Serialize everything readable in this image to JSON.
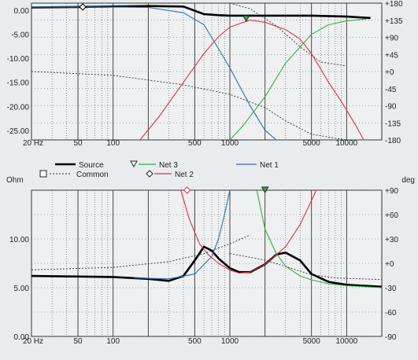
{
  "colors": {
    "background": "#e9ecef",
    "grid": "#444444",
    "source": "#000000",
    "net1": "#2c6fb3",
    "net2": "#e0304a",
    "net3": "#2fae45",
    "common": "#333333"
  },
  "chart_data": [
    {
      "type": "line",
      "x_scale": "log",
      "xlim": [
        20,
        20000
      ],
      "ylim": [
        -27,
        1.5
      ],
      "y2lim": [
        -180,
        180
      ],
      "x_tick_labels": [
        "20 Hz",
        "50",
        "100",
        "500",
        "1000",
        "5000",
        "10000"
      ],
      "y_tick_labels": [
        "0.00",
        "-5.00",
        "-10.00",
        "-15.00",
        "-20.00",
        "-25.00"
      ],
      "y2_tick_labels": [
        "+180",
        "+135",
        "+90",
        "+45",
        "+0",
        "-45",
        "-90",
        "-135",
        "-180"
      ],
      "grid": true,
      "series": [
        {
          "key": "source",
          "x": [
            20,
            50,
            100,
            200,
            400,
            600,
            800,
            1000,
            2000,
            5000,
            10000,
            16000
          ],
          "y": [
            0.6,
            0.7,
            0.8,
            0.9,
            0.8,
            -0.8,
            -1.0,
            -1.1,
            -1.1,
            -1.1,
            -1.3,
            -1.6
          ]
        },
        {
          "key": "net1",
          "x": [
            20,
            100,
            200,
            400,
            600,
            800,
            1000,
            1500,
            2000,
            2500
          ],
          "y": [
            0.7,
            0.7,
            0.6,
            -0.5,
            -3,
            -8,
            -12,
            -20,
            -25,
            -27
          ]
        },
        {
          "key": "net2",
          "x": [
            170,
            250,
            400,
            600,
            800,
            1000,
            1500,
            2000,
            3000,
            4000,
            5000,
            7000,
            9000,
            12000,
            14000
          ],
          "y": [
            -27,
            -22,
            -15,
            -9,
            -5.5,
            -3.5,
            -2,
            -2.5,
            -4,
            -6,
            -9,
            -15,
            -19,
            -24,
            -27
          ]
        },
        {
          "key": "net3",
          "x": [
            1000,
            1300,
            2000,
            3000,
            5000,
            7000,
            10000,
            15000
          ],
          "y": [
            -27,
            -24,
            -18,
            -11,
            -5,
            -3,
            -2.2,
            -1.8
          ]
        },
        {
          "key": "phase_a",
          "axis": "y2",
          "x": [
            20,
            100,
            400,
            1000,
            2000,
            3000,
            5000,
            10000
          ],
          "y": [
            0,
            -10,
            -35,
            -60,
            -95,
            -130,
            -165,
            -180
          ]
        },
        {
          "key": "phase_b",
          "axis": "y2",
          "x": [
            1000,
            1500,
            2500,
            4000,
            6000,
            10000
          ],
          "y": [
            180,
            165,
            120,
            65,
            25,
            15
          ]
        }
      ],
      "markers": [
        {
          "series": "source",
          "shape": "diamond",
          "x": 55,
          "y": 0.7
        },
        {
          "series": "net3",
          "shape": "triangle",
          "x": 1380,
          "y": -1.8
        }
      ]
    },
    {
      "type": "line",
      "x_scale": "log",
      "xlim": [
        20,
        20000
      ],
      "ylim": [
        0,
        15
      ],
      "y2lim": [
        -90,
        90
      ],
      "ylabel": "Ohm",
      "y2label": "deg",
      "x_tick_labels": [
        "20 Hz",
        "50",
        "100",
        "500",
        "1000",
        "5000",
        "10000"
      ],
      "y_tick_labels": [
        "0.00",
        "5.00",
        "10.00"
      ],
      "y2_tick_labels": [
        "+90",
        "+60",
        "+30",
        "+0",
        "-30",
        "-60",
        "-90"
      ],
      "legend": [
        {
          "key": "source",
          "label": "Source",
          "symbol": "line"
        },
        {
          "key": "net3",
          "label": "Net 3",
          "symbol": "triangle"
        },
        {
          "key": "net1",
          "label": "Net 1",
          "symbol": "line"
        },
        {
          "key": "common",
          "label": "Common",
          "symbol": "square"
        },
        {
          "key": "net2",
          "label": "Net 2",
          "symbol": "diamond"
        }
      ],
      "series": [
        {
          "key": "source",
          "x": [
            20,
            100,
            200,
            300,
            400,
            500,
            600,
            700,
            800,
            1000,
            1200,
            1500,
            2000,
            2500,
            3000,
            4000,
            5000,
            7000,
            10000,
            20000
          ],
          "y": [
            6.2,
            6.1,
            5.9,
            5.7,
            6.2,
            7.8,
            9.2,
            8.8,
            8.0,
            7.0,
            6.6,
            6.6,
            7.4,
            8.4,
            8.6,
            7.8,
            6.4,
            5.6,
            5.3,
            5.1
          ]
        },
        {
          "key": "net1",
          "x": [
            150,
            300,
            500,
            700,
            800,
            900,
            1000
          ],
          "y": [
            6.0,
            5.9,
            6.4,
            8.2,
            10.0,
            12.5,
            15.0
          ]
        },
        {
          "key": "net2",
          "x": [
            380,
            450,
            550,
            650,
            800,
            1000,
            1200,
            1500,
            2000,
            3000,
            4000,
            4800,
            5500
          ],
          "y": [
            15.0,
            12.0,
            9.5,
            8.4,
            7.5,
            6.8,
            6.5,
            6.6,
            7.4,
            9.2,
            11.5,
            13.5,
            15.0
          ]
        },
        {
          "key": "net3",
          "x": [
            1700,
            2000,
            2500,
            3000,
            4000,
            5000,
            7000,
            10000,
            20000
          ],
          "y": [
            15.0,
            11.0,
            8.5,
            7.2,
            6.2,
            5.8,
            5.4,
            5.2,
            5.0
          ]
        },
        {
          "key": "phase_c",
          "axis": "y2",
          "x": [
            20,
            100,
            300,
            600,
            1000,
            1500
          ],
          "y": [
            -8,
            -5,
            2,
            12,
            24,
            35
          ]
        },
        {
          "key": "phase_d",
          "axis": "y2",
          "x": [
            1000,
            2000,
            3000,
            5000,
            8000,
            20000
          ],
          "y": [
            12,
            4,
            -4,
            -14,
            -18,
            -20
          ]
        }
      ],
      "markers": [
        {
          "series": "net2",
          "shape": "diamond",
          "x": 430,
          "y": 15.0
        },
        {
          "series": "net3",
          "shape": "triangle",
          "x": 2000,
          "y": 15.0
        }
      ]
    }
  ]
}
